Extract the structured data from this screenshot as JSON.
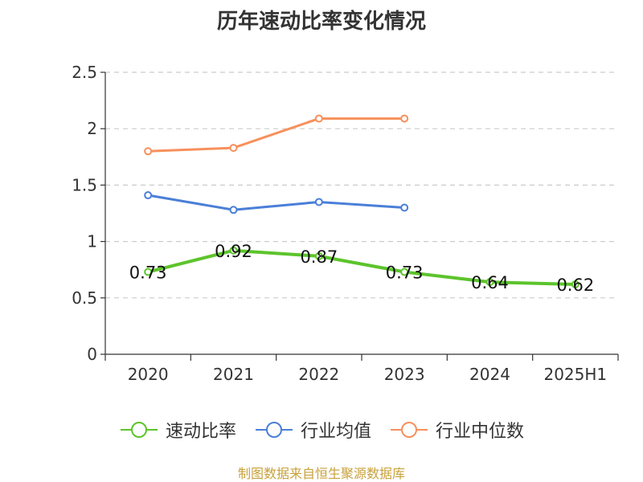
{
  "chart_data": {
    "type": "line",
    "title": "历年速动比率变化情况",
    "categories": [
      "2020",
      "2021",
      "2022",
      "2023",
      "2024",
      "2025H1"
    ],
    "ylim": [
      0,
      2.5
    ],
    "yticks": [
      "0",
      "0.5",
      "1",
      "1.5",
      "2",
      "2.5"
    ],
    "grid": true,
    "legend_position": "bottom",
    "series": [
      {
        "name": "速动比率",
        "color": "#5cc42b",
        "values": [
          0.73,
          0.92,
          0.87,
          0.73,
          0.64,
          0.62
        ],
        "labels": [
          "0.73",
          "0.92",
          "0.87",
          "0.73",
          "0.64",
          "0.62"
        ]
      },
      {
        "name": "行业均值",
        "color": "#4a7fd8",
        "values": [
          1.41,
          1.28,
          1.35,
          1.3,
          null,
          null
        ]
      },
      {
        "name": "行业中位数",
        "color": "#f7905c",
        "values": [
          1.8,
          1.83,
          2.09,
          2.09,
          null,
          null
        ]
      }
    ]
  },
  "source": "制图数据来自恒生聚源数据库"
}
